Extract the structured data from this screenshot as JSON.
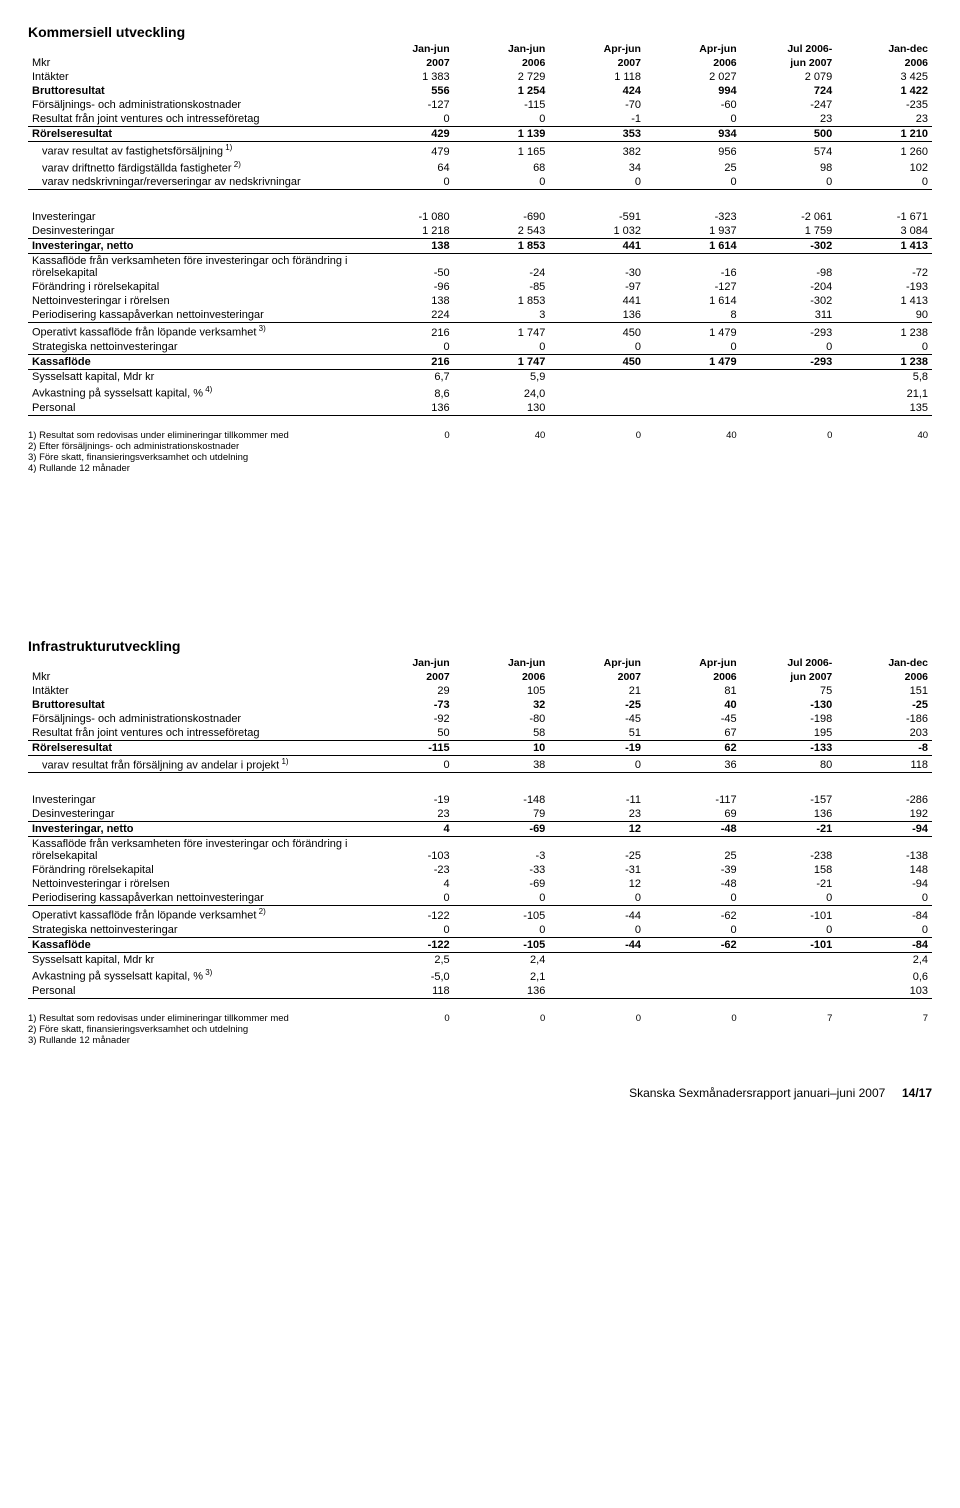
{
  "section1": {
    "title": "Kommersiell utveckling",
    "unit": "Mkr",
    "col_headers": [
      {
        "l1": "Jan-jun",
        "l2": "2007"
      },
      {
        "l1": "Jan-jun",
        "l2": "2006"
      },
      {
        "l1": "Apr-jun",
        "l2": "2007"
      },
      {
        "l1": "Apr-jun",
        "l2": "2006"
      },
      {
        "l1": "Jul 2006-",
        "l2": "jun 2007"
      },
      {
        "l1": "Jan-dec",
        "l2": "2006"
      }
    ],
    "block1": [
      {
        "label": "Intäkter",
        "v": [
          "1 383",
          "2 729",
          "1 118",
          "2 027",
          "2 079",
          "3 425"
        ]
      },
      {
        "label": "Bruttoresultat",
        "v": [
          "556",
          "1 254",
          "424",
          "994",
          "724",
          "1 422"
        ],
        "bold": true
      },
      {
        "label": "Försäljnings- och administrationskostnader",
        "v": [
          "-127",
          "-115",
          "-70",
          "-60",
          "-247",
          "-235"
        ]
      },
      {
        "label": "Resultat från joint ventures och intresseföretag",
        "v": [
          "0",
          "0",
          "-1",
          "0",
          "23",
          "23"
        ]
      },
      {
        "label": "Rörelseresultat",
        "v": [
          "429",
          "1 139",
          "353",
          "934",
          "500",
          "1 210"
        ],
        "bold": true,
        "borderTop": true,
        "borderBottom": true
      },
      {
        "label": "varav resultat av fastighetsförsäljning",
        "sup": "1)",
        "indent": true,
        "v": [
          "479",
          "1 165",
          "382",
          "956",
          "574",
          "1 260"
        ]
      },
      {
        "label": "varav driftnetto färdigställda fastigheter",
        "sup": "2)",
        "indent": true,
        "v": [
          "64",
          "68",
          "34",
          "25",
          "98",
          "102"
        ]
      },
      {
        "label": "varav nedskrivningar/reverseringar av nedskrivningar",
        "indent": true,
        "v": [
          "0",
          "0",
          "0",
          "0",
          "0",
          "0"
        ],
        "borderBottom": true
      }
    ],
    "block2": [
      {
        "label": "Investeringar",
        "v": [
          "-1 080",
          "-690",
          "-591",
          "-323",
          "-2 061",
          "-1 671"
        ]
      },
      {
        "label": "Desinvesteringar",
        "v": [
          "1 218",
          "2 543",
          "1 032",
          "1 937",
          "1 759",
          "3 084"
        ]
      },
      {
        "label": "Investeringar, netto",
        "v": [
          "138",
          "1 853",
          "441",
          "1 614",
          "-302",
          "1 413"
        ],
        "bold": true,
        "borderTop": true,
        "borderBottom": true
      },
      {
        "label": "Kassaflöde från verksamheten före investeringar och förändring i rörelsekapital",
        "v": [
          "-50",
          "-24",
          "-30",
          "-16",
          "-98",
          "-72"
        ]
      },
      {
        "label": "Förändring i rörelsekapital",
        "v": [
          "-96",
          "-85",
          "-97",
          "-127",
          "-204",
          "-193"
        ]
      },
      {
        "label": "Nettoinvesteringar i rörelsen",
        "v": [
          "138",
          "1 853",
          "441",
          "1 614",
          "-302",
          "1 413"
        ]
      },
      {
        "label": "Periodisering kassapåverkan nettoinvesteringar",
        "v": [
          "224",
          "3",
          "136",
          "8",
          "311",
          "90"
        ]
      },
      {
        "label": "Operativt kassaflöde från löpande verksamhet",
        "sup": "3)",
        "v": [
          "216",
          "1 747",
          "450",
          "1 479",
          "-293",
          "1 238"
        ],
        "borderTop": true
      },
      {
        "label": "Strategiska nettoinvesteringar",
        "v": [
          "0",
          "0",
          "0",
          "0",
          "0",
          "0"
        ]
      },
      {
        "label": "Kassaflöde",
        "v": [
          "216",
          "1 747",
          "450",
          "1 479",
          "-293",
          "1 238"
        ],
        "bold": true,
        "borderTop": true,
        "borderBottom": true
      },
      {
        "label": "Sysselsatt kapital, Mdr kr",
        "v": [
          "6,7",
          "5,9",
          "",
          "",
          "",
          "5,8"
        ]
      },
      {
        "label": "Avkastning på sysselsatt kapital, %",
        "sup": "4)",
        "v": [
          "8,6",
          "24,0",
          "",
          "",
          "",
          "21,1"
        ]
      },
      {
        "label": "Personal",
        "v": [
          "136",
          "130",
          "",
          "",
          "",
          "135"
        ],
        "borderBottom": true
      }
    ],
    "footnotes": {
      "row1": {
        "label": "1) Resultat som redovisas under elimineringar tillkommer med",
        "v": [
          "0",
          "40",
          "0",
          "40",
          "0",
          "40"
        ]
      },
      "lines": [
        "2) Efter försäljnings- och administrationskostnader",
        "3) Före skatt, finansieringsverksamhet och utdelning",
        "4) Rullande 12 månader"
      ]
    }
  },
  "section2": {
    "title": "Infrastrukturutveckling",
    "unit": "Mkr",
    "col_headers": [
      {
        "l1": "Jan-jun",
        "l2": "2007"
      },
      {
        "l1": "Jan-jun",
        "l2": "2006"
      },
      {
        "l1": "Apr-jun",
        "l2": "2007"
      },
      {
        "l1": "Apr-jun",
        "l2": "2006"
      },
      {
        "l1": "Jul 2006-",
        "l2": "jun 2007"
      },
      {
        "l1": "Jan-dec",
        "l2": "2006"
      }
    ],
    "block1": [
      {
        "label": "Intäkter",
        "v": [
          "29",
          "105",
          "21",
          "81",
          "75",
          "151"
        ]
      },
      {
        "label": "Bruttoresultat",
        "v": [
          "-73",
          "32",
          "-25",
          "40",
          "-130",
          "-25"
        ],
        "bold": true
      },
      {
        "label": "Försäljnings- och administrationskostnader",
        "v": [
          "-92",
          "-80",
          "-45",
          "-45",
          "-198",
          "-186"
        ]
      },
      {
        "label": "Resultat från joint ventures och intresseföretag",
        "v": [
          "50",
          "58",
          "51",
          "67",
          "195",
          "203"
        ]
      },
      {
        "label": "Rörelseresultat",
        "v": [
          "-115",
          "10",
          "-19",
          "62",
          "-133",
          "-8"
        ],
        "bold": true,
        "borderTop": true,
        "borderBottom": true
      },
      {
        "label": "varav resultat från försäljning av andelar i projekt",
        "sup": "1)",
        "indent": true,
        "v": [
          "0",
          "38",
          "0",
          "36",
          "80",
          "118"
        ],
        "borderBottom": true
      }
    ],
    "block2": [
      {
        "label": "Investeringar",
        "v": [
          "-19",
          "-148",
          "-11",
          "-117",
          "-157",
          "-286"
        ]
      },
      {
        "label": "Desinvesteringar",
        "v": [
          "23",
          "79",
          "23",
          "69",
          "136",
          "192"
        ]
      },
      {
        "label": "Investeringar, netto",
        "v": [
          "4",
          "-69",
          "12",
          "-48",
          "-21",
          "-94"
        ],
        "bold": true,
        "borderTop": true,
        "borderBottom": true
      },
      {
        "label": "Kassaflöde från verksamheten före investeringar och förändring i rörelsekapital",
        "v": [
          "-103",
          "-3",
          "-25",
          "25",
          "-238",
          "-138"
        ]
      },
      {
        "label": "Förändring rörelsekapital",
        "v": [
          "-23",
          "-33",
          "-31",
          "-39",
          "158",
          "148"
        ]
      },
      {
        "label": "Nettoinvesteringar i rörelsen",
        "v": [
          "4",
          "-69",
          "12",
          "-48",
          "-21",
          "-94"
        ]
      },
      {
        "label": "Periodisering kassapåverkan nettoinvesteringar",
        "v": [
          "0",
          "0",
          "0",
          "0",
          "0",
          "0"
        ]
      },
      {
        "label": "Operativt kassaflöde från löpande verksamhet",
        "sup": "2)",
        "v": [
          "-122",
          "-105",
          "-44",
          "-62",
          "-101",
          "-84"
        ],
        "borderTop": true
      },
      {
        "label": "Strategiska nettoinvesteringar",
        "v": [
          "0",
          "0",
          "0",
          "0",
          "0",
          "0"
        ]
      },
      {
        "label": "Kassaflöde",
        "v": [
          "-122",
          "-105",
          "-44",
          "-62",
          "-101",
          "-84"
        ],
        "bold": true,
        "borderTop": true,
        "borderBottom": true
      },
      {
        "label": "Sysselsatt kapital, Mdr kr",
        "v": [
          "2,5",
          "2,4",
          "",
          "",
          "",
          "2,4"
        ]
      },
      {
        "label": "Avkastning på sysselsatt kapital, %",
        "sup": "3)",
        "v": [
          "-5,0",
          "2,1",
          "",
          "",
          "",
          "0,6"
        ]
      },
      {
        "label": "Personal",
        "v": [
          "118",
          "136",
          "",
          "",
          "",
          "103"
        ],
        "borderBottom": true
      }
    ],
    "footnotes": {
      "row1": {
        "label": "1) Resultat som redovisas under elimineringar tillkommer med",
        "v": [
          "0",
          "0",
          "0",
          "0",
          "7",
          "7"
        ]
      },
      "lines": [
        "2) Före skatt, finansieringsverksamhet och utdelning",
        "3) Rullande 12 månader"
      ]
    }
  },
  "footer": {
    "text": "Skanska Sexmånadersrapport januari–juni 2007",
    "page": "14/17"
  }
}
